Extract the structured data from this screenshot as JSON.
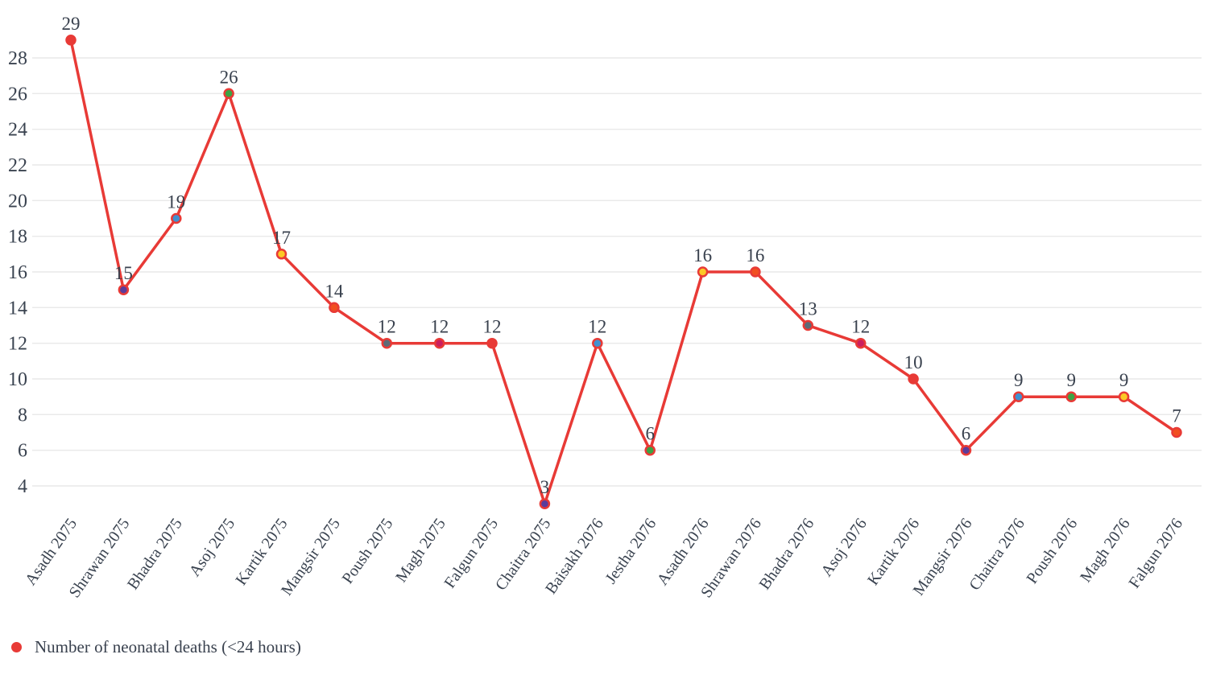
{
  "chart_data": {
    "type": "line",
    "title": "",
    "xlabel": "",
    "ylabel": "",
    "categories": [
      "Asadh 2075",
      "Shrawan 2075",
      "Bhadra 2075",
      "Asoj 2075",
      "Kartik 2075",
      "Mangsir 2075",
      "Poush 2075",
      "Magh 2075",
      "Falgun 2075",
      "Chaitra 2075",
      "Baisakh 2076",
      "Jestha 2076",
      "Asadh 2076",
      "Shrawan 2076",
      "Bhadra 2076",
      "Asoj 2076",
      "Kartik 2076",
      "Mangsir 2076",
      "Chaitra 2076",
      "Poush 2076",
      "Magh 2076",
      "Falgun 2076"
    ],
    "values": [
      29,
      15,
      19,
      26,
      17,
      14,
      12,
      12,
      12,
      3,
      12,
      6,
      16,
      16,
      13,
      12,
      10,
      6,
      9,
      9,
      9,
      7
    ],
    "series": [
      {
        "name": "Number of neonatal deaths (<24 hours)",
        "values": [
          29,
          15,
          19,
          26,
          17,
          14,
          12,
          12,
          12,
          3,
          12,
          6,
          16,
          16,
          13,
          12,
          10,
          6,
          9,
          9,
          9,
          7
        ]
      }
    ],
    "y_ticks": [
      4,
      6,
      8,
      10,
      12,
      14,
      16,
      18,
      20,
      22,
      24,
      26,
      28
    ],
    "ylim": [
      2,
      30
    ],
    "grid": true,
    "legend_position": "bottom-left",
    "line_color": "#e83a36",
    "point_colors": [
      "#e83a36",
      "#5b3c9b",
      "#4191d0",
      "#3ca344",
      "#fcc926",
      "#f14f20",
      "#5d6a76",
      "#cb1e5e",
      "#e83a36",
      "#5b3c9b",
      "#4191d0",
      "#3ca344",
      "#fcc926",
      "#f14f20",
      "#5d6a76",
      "#cb1e5e",
      "#e83a36",
      "#5b3c9b",
      "#4191d0",
      "#3ca344",
      "#fcc926",
      "#f14f20"
    ]
  },
  "legend": {
    "label": "Number of neonatal deaths (<24 hours)",
    "marker_color": "#e83a36"
  },
  "colors": {
    "text": "#3a4350",
    "gridline": "#e9e9e9",
    "background": "#ffffff"
  }
}
